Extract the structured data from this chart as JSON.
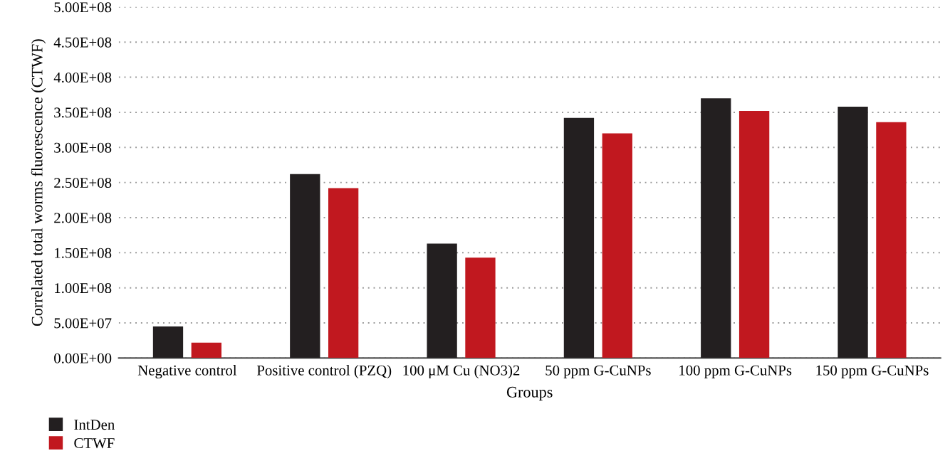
{
  "chart_data": {
    "type": "bar",
    "xlabel": "Groups",
    "ylabel": "Correlated total worms fluorescence (CTWF)",
    "categories": [
      "Negative control",
      "Positive control (PZQ)",
      "100 μM Cu (NO3)2",
      "50 ppm G-CuNPs",
      "100 ppm G-CuNPs",
      "150 ppm G-CuNPs"
    ],
    "series": [
      {
        "name": "IntDen",
        "color": "#231f20",
        "values": [
          45000000,
          262000000,
          163000000,
          342000000,
          370000000,
          358000000
        ]
      },
      {
        "name": "CTWF",
        "color": "#c1181f",
        "values": [
          22000000,
          242000000,
          143000000,
          320000000,
          352000000,
          336000000
        ]
      }
    ],
    "ylim": [
      0,
      500000000
    ],
    "yticks": [
      {
        "value": 0,
        "label": "0.00E+00"
      },
      {
        "value": 50000000,
        "label": "5.00E+07"
      },
      {
        "value": 100000000,
        "label": "1.00E+08"
      },
      {
        "value": 150000000,
        "label": "1.50E+08"
      },
      {
        "value": 200000000,
        "label": "2.00E+08"
      },
      {
        "value": 250000000,
        "label": "2.50E+08"
      },
      {
        "value": 300000000,
        "label": "3.00E+08"
      },
      {
        "value": 350000000,
        "label": "3.50E+08"
      },
      {
        "value": 400000000,
        "label": "4.00E+08"
      },
      {
        "value": 450000000,
        "label": "4.50E+08"
      },
      {
        "value": 500000000,
        "label": "5.00E+08"
      }
    ],
    "grid": "y",
    "legend": "bottom left"
  }
}
